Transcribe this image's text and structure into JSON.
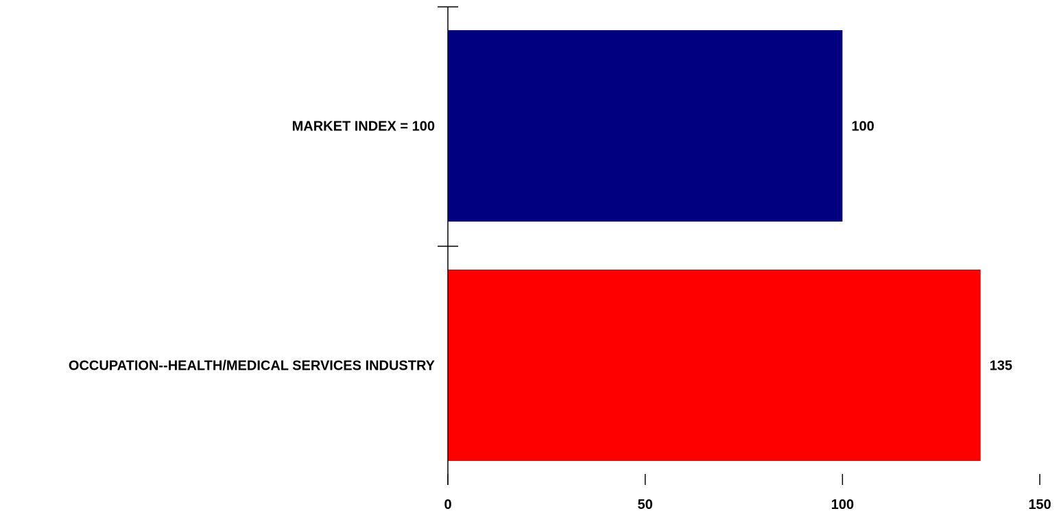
{
  "chart_data": {
    "type": "bar",
    "orientation": "horizontal",
    "title": "",
    "xlabel": "",
    "ylabel": "",
    "categories": [
      "MARKET INDEX = 100",
      "OCCUPATION--HEALTH/MEDICAL SERVICES INDUSTRY"
    ],
    "values": [
      100,
      135
    ],
    "value_labels": [
      "100",
      "135"
    ],
    "colors": [
      "#000080",
      "#ff0000"
    ],
    "xlim": [
      0,
      150
    ],
    "x_ticks": [
      0,
      50,
      100,
      150
    ],
    "x_tick_labels": [
      "0",
      "50",
      "100",
      "150"
    ],
    "grid": false,
    "legend": "none"
  }
}
